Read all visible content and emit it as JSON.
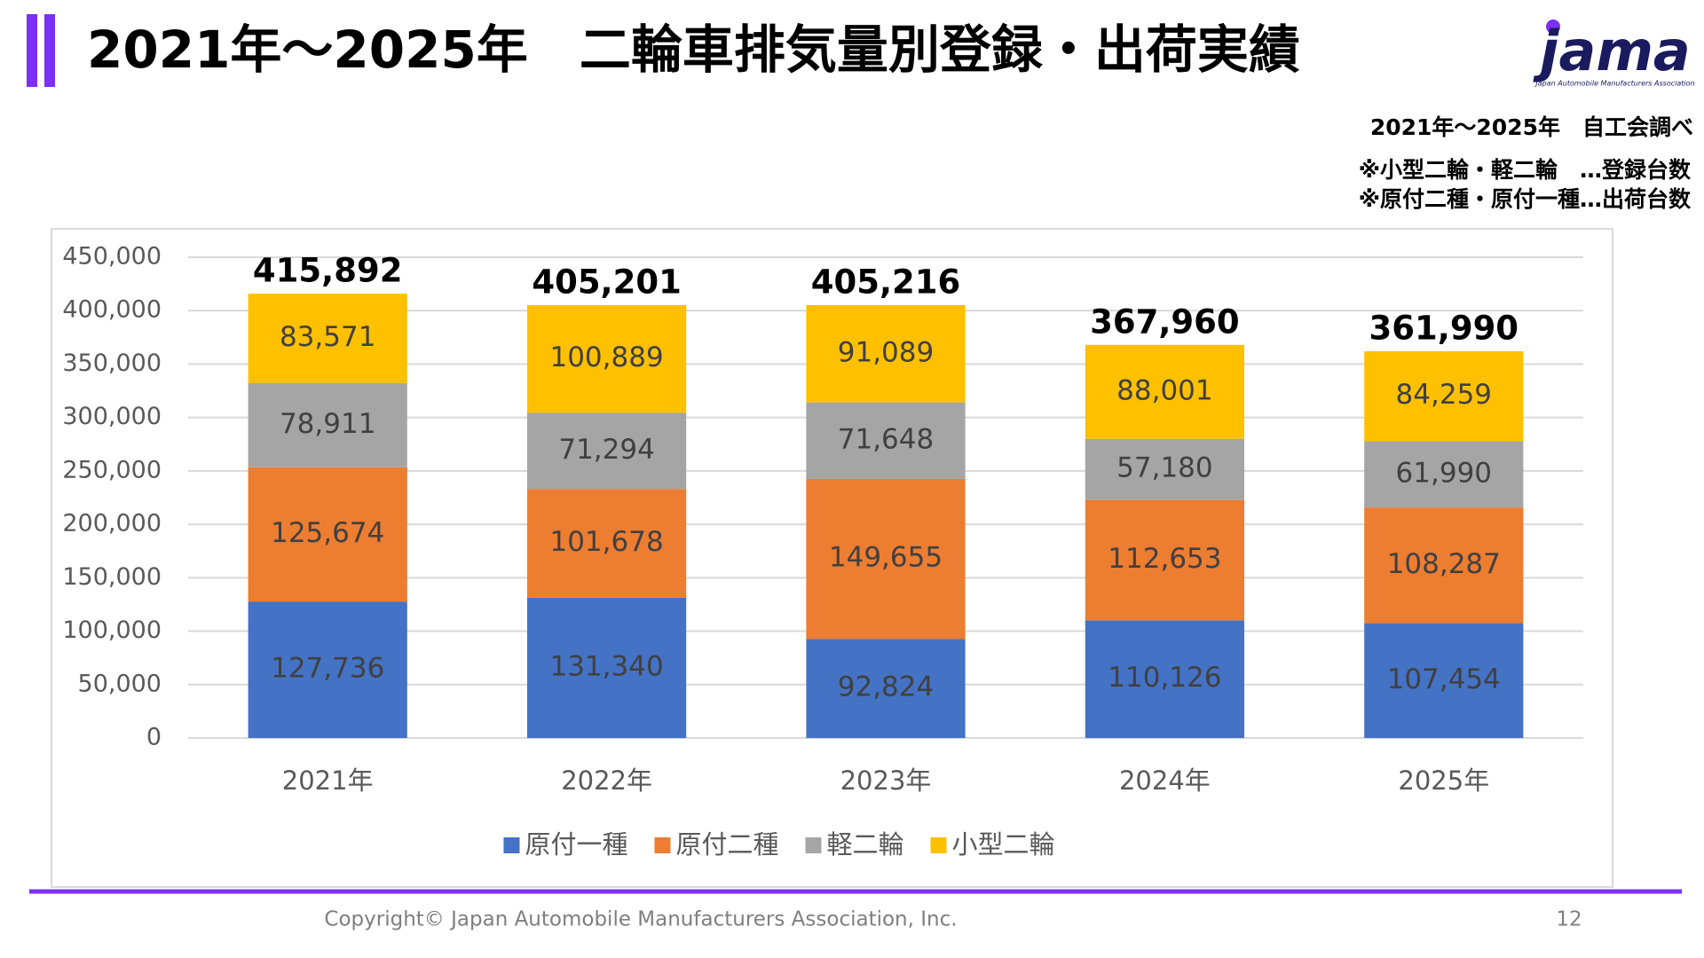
{
  "page": {
    "title": "2021年～2025年　二輪車排気量別登録・出荷実績",
    "logo": "jama",
    "logo_subtitle": "Japan Automobile Manufacturers Association",
    "notes": [
      "2021年～2025年　自工会調べ",
      "※小型二輪・軽二輪　…登録台数",
      "※原付二種・原付一種…出荷台数"
    ],
    "copyright": "Copyright© Japan Automobile Manufacturers Association, Inc.",
    "page_number": "12"
  },
  "chart_data": {
    "type": "stacked_bar",
    "categories": [
      "2021年",
      "2022年",
      "2023年",
      "2024年",
      "2025年"
    ],
    "series": [
      {
        "name": "原付一種",
        "color": "#4472c4",
        "values": [
          127736,
          131340,
          92824,
          110126,
          107454
        ],
        "value_labels": [
          "127,736",
          "131,340",
          "92,824",
          "110,126",
          "107,454"
        ]
      },
      {
        "name": "原付二種",
        "color": "#ed7d31",
        "values": [
          125674,
          101678,
          149655,
          112653,
          108287
        ],
        "value_labels": [
          "125,674",
          "101,678",
          "149,655",
          "112,653",
          "108,287"
        ]
      },
      {
        "name": "軽二輪",
        "color": "#a5a5a5",
        "values": [
          78911,
          71294,
          71648,
          57180,
          61990
        ],
        "value_labels": [
          "78,911",
          "71,294",
          "71,648",
          "57,180",
          "61,990"
        ]
      },
      {
        "name": "小型二輪",
        "color": "#ffc000",
        "values": [
          83571,
          100889,
          91089,
          88001,
          84259
        ],
        "value_labels": [
          "83,571",
          "100,889",
          "91,089",
          "88,001",
          "84,259"
        ]
      }
    ],
    "totals": [
      415892,
      405201,
      405216,
      367960,
      361990
    ],
    "total_labels": [
      "415,892",
      "405,201",
      "405,216",
      "367,960",
      "361,990"
    ],
    "ylim": [
      0,
      450000
    ],
    "yticks": [
      0,
      {
        "value": 50000,
        "label": "50,000"
      },
      {
        "value": 100000,
        "label": "100,000"
      },
      {
        "value": 150000,
        "label": "150,000"
      },
      {
        "value": 200000,
        "label": "200,000"
      },
      {
        "value": 250000,
        "label": "250,000"
      },
      {
        "value": 300000,
        "label": "300,000"
      },
      {
        "value": 350000,
        "label": "350,000"
      },
      {
        "value": 400000,
        "label": "400,000"
      },
      {
        "value": 450000,
        "label": "450,000"
      }
    ],
    "grid": true,
    "legend": "bottom"
  }
}
